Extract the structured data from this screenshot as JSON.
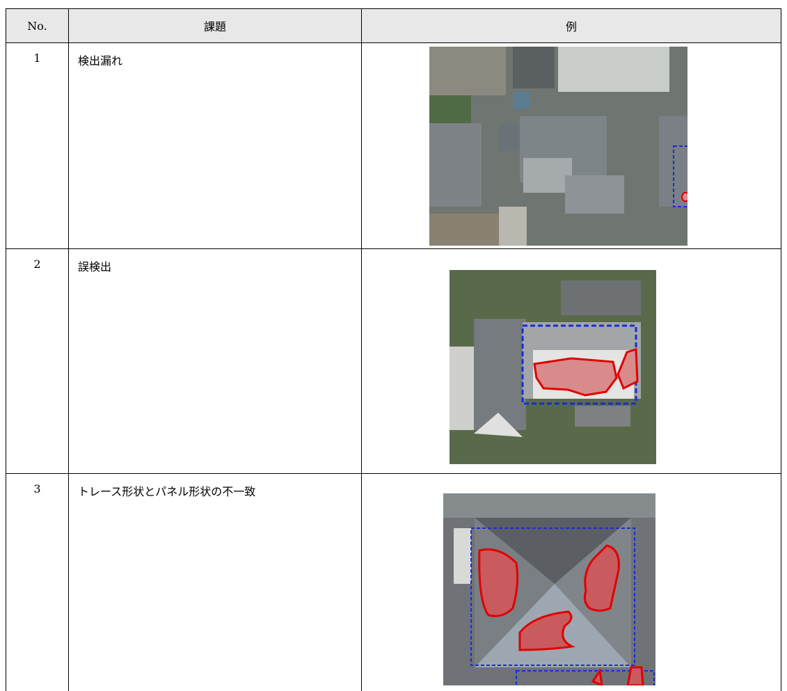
{
  "header": {
    "columns": [
      "No.",
      "課題",
      "例"
    ]
  },
  "table": {
    "rows": [
      [
        "1",
        "検出漏れ"
      ],
      [
        "2",
        "誤検出"
      ],
      [
        "3",
        "トレース形状とパネル形状の不一致"
      ]
    ]
  }
}
